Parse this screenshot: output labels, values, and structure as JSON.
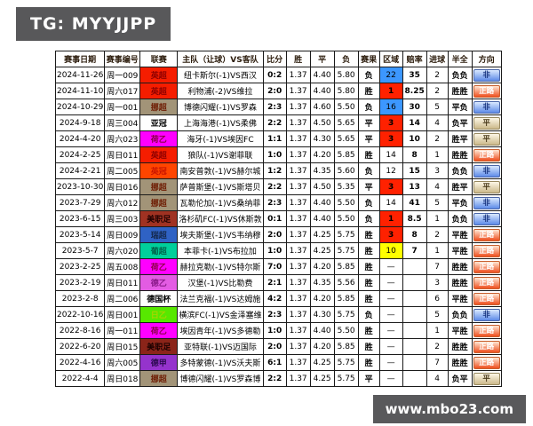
{
  "branding": {
    "tg_label": "TG: MYYJJPP",
    "website": "www.mbo23.com"
  },
  "colors": {
    "watermark_bg": "#58585a",
    "result_win": "#e60000",
    "result_draw": "#000000",
    "result_lose": "#5b8bd5",
    "region_red": "#ff2100",
    "region_blue": "#3c97ff",
    "region_yellow": "#ffff00"
  },
  "table": {
    "headers": [
      "赛事日期",
      "赛事编号",
      "联赛",
      "主队（让球）VS客队",
      "比分",
      "胜",
      "平",
      "负",
      "赛果",
      "区域",
      "赔率",
      "进球",
      "半全",
      "方向"
    ],
    "rows": [
      {
        "date": "2024-11-26",
        "code": "周一009",
        "league": "英超",
        "league_bg": "#f51d00",
        "league_fg": "#8b0000",
        "match": "纽卡斯尔(-1)VS西汉",
        "score": "0:2",
        "win": "1.37",
        "draw": "4.40",
        "lose": "5.80",
        "result": "负",
        "region": "22",
        "region_bg": "#3c97ff",
        "odds": "35",
        "goals": "2",
        "half_full": "负负",
        "direction": "非"
      },
      {
        "date": "2024-11-10",
        "code": "周六017",
        "league": "英超",
        "league_bg": "#f51d00",
        "league_fg": "#8b0000",
        "match": "利物浦(-2)VS维拉",
        "score": "2:0",
        "win": "1.37",
        "draw": "4.40",
        "lose": "5.80",
        "result": "胜",
        "region": "1",
        "region_bg": "#ff2100",
        "odds": "8.25",
        "goals": "2",
        "half_full": "胜胜",
        "direction": "正路"
      },
      {
        "date": "2024-10-29",
        "code": "周一001",
        "league": "挪超",
        "league_bg": "#a29478",
        "league_fg": "#6d1a00",
        "match": "博德闪耀(-1)VS罗森",
        "score": "2:3",
        "win": "1.37",
        "draw": "4.60",
        "lose": "5.50",
        "result": "负",
        "region": "16",
        "region_bg": "#3c97ff",
        "odds": "30",
        "goals": "5",
        "half_full": "平负",
        "direction": "非"
      },
      {
        "date": "2024-9-18",
        "code": "周三004",
        "league": "亚冠",
        "league_bg": "#ffffff",
        "league_fg": "#000000",
        "match": "上海海港(-1)VS柔佛",
        "score": "2:2",
        "win": "1.37",
        "draw": "4.50",
        "lose": "5.65",
        "result": "平",
        "region": "3",
        "region_bg": "#ff2100",
        "odds": "14",
        "goals": "4",
        "half_full": "负平",
        "direction": "平"
      },
      {
        "date": "2024-4-20",
        "code": "周六023",
        "league": "荷乙",
        "league_bg": "#ff00ff",
        "league_fg": "#8b0045",
        "match": "海牙(-1)VS埃因FC",
        "score": "1:1",
        "win": "1.37",
        "draw": "4.30",
        "lose": "5.65",
        "result": "平",
        "region": "3",
        "region_bg": "#ff2100",
        "odds": "10",
        "goals": "2",
        "half_full": "胜平",
        "direction": "平"
      },
      {
        "date": "2024-2-25",
        "code": "周日011",
        "league": "英超",
        "league_bg": "#f51d00",
        "league_fg": "#8b0000",
        "match": "狼队(-1)VS谢菲联",
        "score": "1:0",
        "win": "1.37",
        "draw": "4.20",
        "lose": "5.85",
        "result": "胜",
        "region": "14",
        "region_bg": "",
        "odds": "8",
        "goals": "1",
        "half_full": "胜胜",
        "direction": "正路"
      },
      {
        "date": "2024-2-21",
        "code": "周二005",
        "league": "英冠",
        "league_bg": "#ff4500",
        "league_fg": "#c81400",
        "match": "南安普敦(-1)VS赫尔城",
        "score": "1:2",
        "win": "1.37",
        "draw": "4.35",
        "lose": "5.60",
        "result": "负",
        "region": "12",
        "region_bg": "",
        "odds": "15",
        "goals": "3",
        "half_full": "负负",
        "direction": "非"
      },
      {
        "date": "2023-10-30",
        "code": "周日016",
        "league": "挪超",
        "league_bg": "#a29478",
        "league_fg": "#6d1a00",
        "match": "萨普斯堡(-1)VS斯塔贝",
        "score": "2:2",
        "win": "1.37",
        "draw": "4.50",
        "lose": "5.35",
        "result": "平",
        "region": "3",
        "region_bg": "#ff2100",
        "odds": "13",
        "goals": "4",
        "half_full": "胜平",
        "direction": "平"
      },
      {
        "date": "2023-7-29",
        "code": "周六012",
        "league": "挪超",
        "league_bg": "#a29478",
        "league_fg": "#6d1a00",
        "match": "瓦勒伦加(-1)VS桑纳菲",
        "score": "2:3",
        "win": "1.37",
        "draw": "4.40",
        "lose": "5.50",
        "result": "负",
        "region": "14",
        "region_bg": "",
        "odds": "41",
        "goals": "5",
        "half_full": "平负",
        "direction": "非"
      },
      {
        "date": "2023-6-15",
        "code": "周三003",
        "league": "美职足",
        "league_bg": "#a03222",
        "league_fg": "#200000",
        "match": "洛杉矶FC(-1)VS休斯敦",
        "score": "0:1",
        "win": "1.37",
        "draw": "4.40",
        "lose": "5.50",
        "result": "负",
        "region": "1",
        "region_bg": "#ff2100",
        "odds": "8.5",
        "goals": "1",
        "half_full": "负负",
        "direction": "非"
      },
      {
        "date": "2023-5-14",
        "code": "周日009",
        "league": "瑞超",
        "league_bg": "#2f62c4",
        "league_fg": "#14284b",
        "match": "埃夫斯堡(-1)VS韦纳穆",
        "score": "2:0",
        "win": "1.37",
        "draw": "4.25",
        "lose": "5.75",
        "result": "胜",
        "region": "3",
        "region_bg": "#ff2100",
        "odds": "8",
        "goals": "2",
        "half_full": "平胜",
        "direction": "正路"
      },
      {
        "date": "2023-5-7",
        "code": "周六020",
        "league": "葡超",
        "league_bg": "#00cf9b",
        "league_fg": "#00634a",
        "match": "本菲卡(-1)VS布拉加",
        "score": "1:0",
        "win": "1.37",
        "draw": "4.25",
        "lose": "5.75",
        "result": "胜",
        "region": "10",
        "region_bg": "#ffff00",
        "odds": "7",
        "goals": "1",
        "half_full": "平胜",
        "direction": "正路"
      },
      {
        "date": "2023-2-25",
        "code": "周五008",
        "league": "荷乙",
        "league_bg": "#ff00ff",
        "league_fg": "#8b0045",
        "match": "赫拉克勒(-1)VS特尔斯",
        "score": "7:0",
        "win": "1.37",
        "draw": "4.20",
        "lose": "5.85",
        "result": "胜",
        "region": "—",
        "region_bg": "",
        "odds": "",
        "goals": "7",
        "half_full": "胜胜",
        "direction": "正路"
      },
      {
        "date": "2023-2-19",
        "code": "周日011",
        "league": "德乙",
        "league_bg": "#e35ce3",
        "league_fg": "#8b1a8b",
        "match": "汉堡(-1)VS比勒费",
        "score": "2:1",
        "win": "1.37",
        "draw": "4.35",
        "lose": "5.56",
        "result": "胜",
        "region": "—",
        "region_bg": "",
        "odds": "",
        "goals": "3",
        "half_full": "胜胜",
        "direction": "正路"
      },
      {
        "date": "2023-2-8",
        "code": "周二006",
        "league": "德国杯",
        "league_bg": "#ffffff",
        "league_fg": "#000000",
        "match": "法兰克福(-1)VS达姆施",
        "score": "4:2",
        "win": "1.37",
        "draw": "4.20",
        "lose": "5.85",
        "result": "胜",
        "region": "—",
        "region_bg": "",
        "odds": "",
        "goals": "6",
        "half_full": "平胜",
        "direction": "正路"
      },
      {
        "date": "2022-10-16",
        "code": "周日001",
        "league": "日乙",
        "league_bg": "#57e800",
        "league_fg": "#a8d400",
        "match": "横滨FC(-1)VS金泽塞维",
        "score": "2:3",
        "win": "1.37",
        "draw": "4.30",
        "lose": "5.75",
        "result": "负",
        "region": "—",
        "region_bg": "",
        "odds": "",
        "goals": "5",
        "half_full": "负负",
        "direction": "非"
      },
      {
        "date": "2022-8-16",
        "code": "周一011",
        "league": "荷乙",
        "league_bg": "#ff00ff",
        "league_fg": "#8b0045",
        "match": "埃因青年(-1)VS多德勒",
        "score": "1:0",
        "win": "1.37",
        "draw": "4.40",
        "lose": "5.50",
        "result": "胜",
        "region": "—",
        "region_bg": "",
        "odds": "",
        "goals": "1",
        "half_full": "平胜",
        "direction": "正路"
      },
      {
        "date": "2022-6-20",
        "code": "周日015",
        "league": "美职足",
        "league_bg": "#8b2419",
        "league_fg": "#1a0000",
        "match": "亚特联(-1)VS迈国际",
        "score": "2:0",
        "win": "1.37",
        "draw": "4.20",
        "lose": "5.85",
        "result": "胜",
        "region": "—",
        "region_bg": "",
        "odds": "",
        "goals": "2",
        "half_full": "胜胜",
        "direction": "正路"
      },
      {
        "date": "2022-4-16",
        "code": "周六005",
        "league": "德甲",
        "league_bg": "#9533cc",
        "league_fg": "#2d0a52",
        "match": "多特蒙德(-1)VS沃夫斯",
        "score": "6:1",
        "win": "1.37",
        "draw": "4.25",
        "lose": "5.75",
        "result": "胜",
        "region": "—",
        "region_bg": "",
        "odds": "",
        "goals": "7",
        "half_full": "胜胜",
        "direction": "正路"
      },
      {
        "date": "2022-4-4",
        "code": "周日018",
        "league": "挪超",
        "league_bg": "#a29478",
        "league_fg": "#6d1a00",
        "match": "博德闪耀(-1)VS罗森博",
        "score": "2:2",
        "win": "1.37",
        "draw": "4.25",
        "lose": "5.75",
        "result": "平",
        "region": "—",
        "region_bg": "",
        "odds": "",
        "goals": "4",
        "half_full": "负平",
        "direction": "平"
      }
    ]
  }
}
